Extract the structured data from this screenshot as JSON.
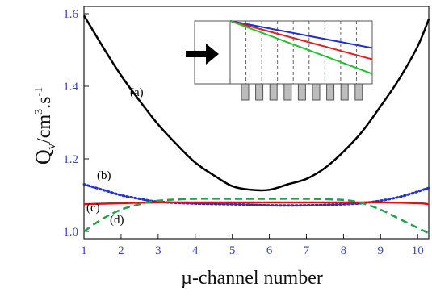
{
  "chart_data": {
    "type": "line",
    "xlabel": "µ-channel number",
    "ylabel": {
      "main": "Q",
      "sub": "v",
      "unit": "/cm",
      "sup": "3",
      "rest": ".s",
      "sup2": "-1"
    },
    "x_ticks": [
      "1",
      "2",
      "3",
      "4",
      "5",
      "6",
      "7",
      "8",
      "9",
      "10"
    ],
    "y_ticks": [
      "1.0",
      "1.2",
      "1.4",
      "1.6"
    ],
    "xlim": [
      1,
      10.3
    ],
    "ylim": [
      0.98,
      1.62
    ],
    "grid": false,
    "series": [
      {
        "name": "(a)",
        "color": "#000000",
        "style": "solid",
        "x": [
          1,
          1.5,
          2,
          2.5,
          3,
          3.5,
          4,
          4.5,
          5,
          5.5,
          6,
          6.5,
          7,
          7.5,
          8,
          8.5,
          9,
          9.5,
          10,
          10.3
        ],
        "y": [
          1.595,
          1.51,
          1.43,
          1.36,
          1.295,
          1.24,
          1.19,
          1.155,
          1.125,
          1.115,
          1.115,
          1.13,
          1.145,
          1.175,
          1.22,
          1.275,
          1.345,
          1.42,
          1.51,
          1.585
        ]
      },
      {
        "name": "(b)",
        "color": "#2233cc",
        "style": "dotted",
        "x": [
          1,
          1.5,
          2,
          2.5,
          3,
          4,
          5,
          6,
          7,
          8,
          8.5,
          9,
          9.5,
          10,
          10.3
        ],
        "y": [
          1.13,
          1.115,
          1.1,
          1.09,
          1.082,
          1.077,
          1.075,
          1.072,
          1.072,
          1.075,
          1.078,
          1.085,
          1.095,
          1.11,
          1.12
        ]
      },
      {
        "name": "(c)",
        "color": "#dd1111",
        "style": "solid",
        "x": [
          1,
          2,
          3,
          4,
          5,
          6,
          7,
          8,
          9,
          10,
          10.3
        ],
        "y": [
          1.075,
          1.078,
          1.08,
          1.08,
          1.08,
          1.08,
          1.08,
          1.08,
          1.08,
          1.078,
          1.075
        ]
      },
      {
        "name": "(d)",
        "color": "#22a04a",
        "style": "dashed",
        "x": [
          1,
          1.5,
          2,
          2.5,
          3,
          4,
          5,
          6,
          7,
          8,
          8.5,
          9,
          9.5,
          10,
          10.3
        ],
        "y": [
          1.0,
          1.035,
          1.06,
          1.075,
          1.085,
          1.09,
          1.09,
          1.09,
          1.09,
          1.087,
          1.078,
          1.06,
          1.035,
          1.01,
          0.995
        ]
      }
    ],
    "annotations": [
      {
        "text": "(a)",
        "color": "#111111"
      },
      {
        "text": "(b)",
        "color": "#2a66c8"
      },
      {
        "text": "(c)",
        "color": "#dd1111"
      },
      {
        "text": "(d)",
        "color": "#22a04a"
      }
    ]
  },
  "inset": {
    "lines": [
      {
        "color": "#1f2fe0",
        "level": 0.43
      },
      {
        "color": "#e02020",
        "level": 0.61
      },
      {
        "color": "#22c030",
        "level": 0.84
      }
    ]
  }
}
